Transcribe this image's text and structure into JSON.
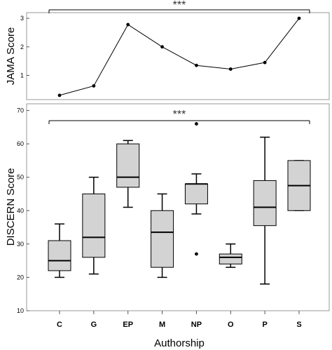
{
  "chart_data": [
    {
      "type": "line",
      "ylabel": "JAMA Score",
      "yticks": [
        "1",
        "2",
        "3"
      ],
      "ylim": [
        0.15,
        3.2
      ],
      "categories": [
        "C",
        "G",
        "EP",
        "M",
        "NP",
        "O",
        "P",
        "S"
      ],
      "values": [
        0.3,
        0.63,
        2.78,
        2.0,
        1.35,
        1.22,
        1.45,
        3.0
      ],
      "significance": "***",
      "grid": false
    },
    {
      "type": "box",
      "xlabel": "Authorship",
      "ylabel": "DISCERN Score",
      "yticks": [
        "10",
        "20",
        "30",
        "40",
        "50",
        "60",
        "70"
      ],
      "ylim": [
        10,
        72
      ],
      "significance": "***",
      "categories": [
        "C",
        "G",
        "EP",
        "M",
        "NP",
        "O",
        "P",
        "S"
      ],
      "boxes": [
        {
          "label": "C",
          "whisker_low": 20,
          "q1": 22,
          "median": 25,
          "q3": 31,
          "whisker_high": 36,
          "outliers": []
        },
        {
          "label": "G",
          "whisker_low": 21,
          "q1": 26,
          "median": 32,
          "q3": 45,
          "whisker_high": 50,
          "outliers": []
        },
        {
          "label": "EP",
          "whisker_low": 41,
          "q1": 47,
          "median": 50,
          "q3": 60,
          "whisker_high": 61,
          "outliers": []
        },
        {
          "label": "M",
          "whisker_low": 20,
          "q1": 23,
          "median": 33.5,
          "q3": 40,
          "whisker_high": 45,
          "outliers": []
        },
        {
          "label": "NP",
          "whisker_low": 39,
          "q1": 42,
          "median": 48,
          "q3": 48,
          "whisker_high": 51,
          "outliers": [
            66,
            27
          ]
        },
        {
          "label": "O",
          "whisker_low": 23,
          "q1": 24,
          "median": 26,
          "q3": 27,
          "whisker_high": 30,
          "outliers": []
        },
        {
          "label": "P",
          "whisker_low": 18,
          "q1": 35.5,
          "median": 41,
          "q3": 49,
          "whisker_high": 62,
          "outliers": []
        },
        {
          "label": "S",
          "whisker_low": 40,
          "q1": 40,
          "median": 47.5,
          "q3": 55,
          "whisker_high": 55,
          "outliers": []
        }
      ],
      "colors": {
        "box_fill": "#d3d3d3",
        "stroke": "#000000"
      },
      "grid": false
    }
  ]
}
